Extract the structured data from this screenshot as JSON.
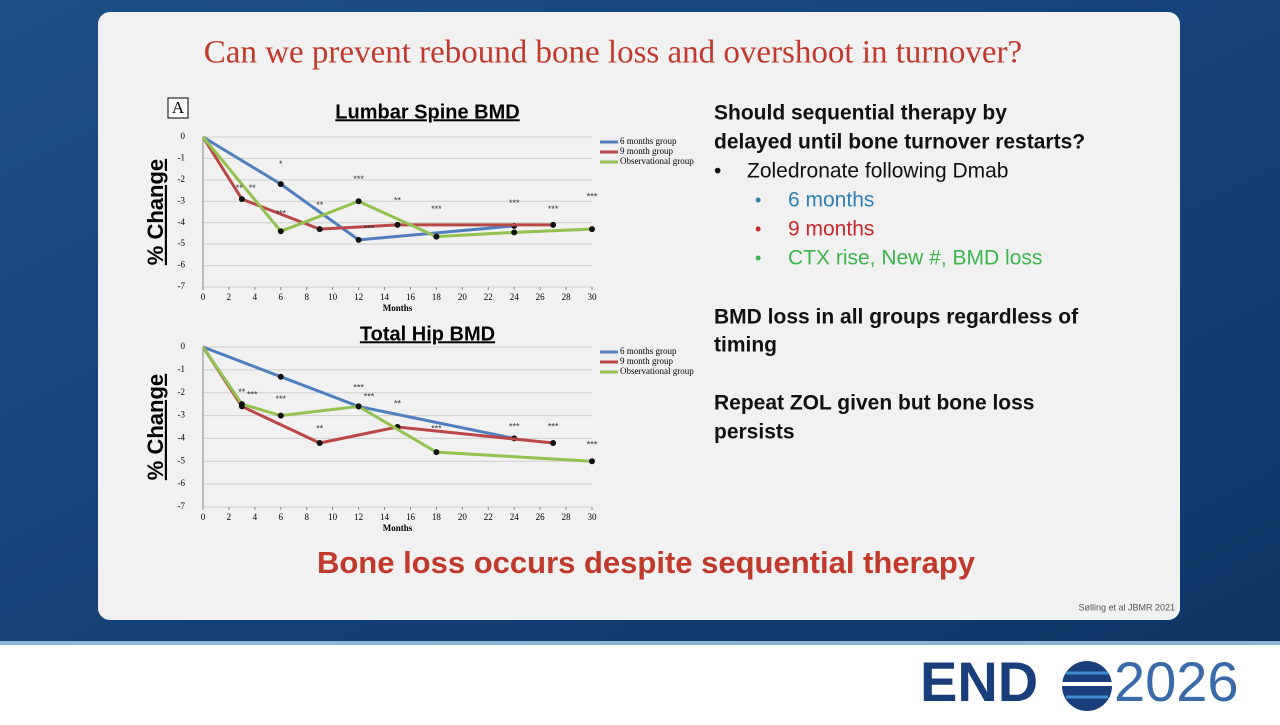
{
  "slide": {
    "title": "Can we prevent rebound bone loss and overshoot in turnover?",
    "panel_letter": "A",
    "heading": [
      "Should sequential therapy by",
      "delayed until bone turnover restarts?"
    ],
    "bullet": "Zoledronate following Dmab",
    "subbullets": [
      {
        "text": "6 months",
        "color": "#2f7fb5"
      },
      {
        "text": "9 months",
        "color": "#c8282d"
      },
      {
        "text": "CTX rise, New #, BMD loss",
        "color": "#3cb54a"
      }
    ],
    "notes": [
      [
        "BMD loss in all groups regardless of",
        "timing"
      ],
      [
        "Repeat ZOL given but bone loss",
        "persists"
      ]
    ],
    "conclusion": "Bone loss occurs despite sequential therapy",
    "citation": "Sølling et al JBMR 2021",
    "logo": {
      "left": "END",
      "right": "2026"
    }
  },
  "chart_data": [
    {
      "type": "line",
      "title": "Lumbar Spine BMD",
      "x_label": "Months",
      "y_label": "% Change",
      "xlim": [
        0,
        30
      ],
      "xticks": [
        0,
        2,
        4,
        6,
        8,
        10,
        12,
        14,
        16,
        18,
        20,
        22,
        24,
        26,
        28,
        30
      ],
      "ylim": [
        -7,
        0
      ],
      "yticks": [
        -7,
        -6,
        -5,
        -4,
        -3,
        -2,
        -1,
        0
      ],
      "grid": true,
      "legend": "top-right",
      "series": [
        {
          "name": "6 months group",
          "color": "#4f7fbf",
          "x": [
            0,
            6,
            12,
            24
          ],
          "values": [
            0,
            -2.2,
            -4.8,
            -4.15
          ]
        },
        {
          "name": "9 month group",
          "color": "#b84745",
          "x": [
            0,
            3,
            9,
            15,
            27
          ],
          "values": [
            0,
            -2.9,
            -4.3,
            -4.1,
            -4.1
          ]
        },
        {
          "name": "Observational group",
          "color": "#93c250",
          "x": [
            0,
            6,
            12,
            18,
            24,
            30
          ],
          "values": [
            0,
            -4.4,
            -3.0,
            -4.65,
            -4.45,
            -4.3
          ]
        }
      ],
      "annotations": [
        {
          "x": 2.8,
          "y": -2.4,
          "text": "**"
        },
        {
          "x": 3.8,
          "y": -2.4,
          "text": "**"
        },
        {
          "x": 6,
          "y": -1.3,
          "text": "*"
        },
        {
          "x": 6,
          "y": -3.6,
          "text": "***"
        },
        {
          "x": 9,
          "y": -3.2,
          "text": "**"
        },
        {
          "x": 12,
          "y": -2.0,
          "text": "***"
        },
        {
          "x": 12.8,
          "y": -4.3,
          "text": "***"
        },
        {
          "x": 15,
          "y": -3.0,
          "text": "**"
        },
        {
          "x": 18,
          "y": -3.4,
          "text": "***"
        },
        {
          "x": 24,
          "y": -3.1,
          "text": "***"
        },
        {
          "x": 27,
          "y": -3.4,
          "text": "***"
        },
        {
          "x": 30,
          "y": -2.8,
          "text": "***"
        }
      ]
    },
    {
      "type": "line",
      "title": "Total Hip BMD",
      "x_label": "Months",
      "y_label": "% Change",
      "xlim": [
        0,
        30
      ],
      "xticks": [
        0,
        2,
        4,
        6,
        8,
        10,
        12,
        14,
        16,
        18,
        20,
        22,
        24,
        26,
        28,
        30
      ],
      "ylim": [
        -7,
        0
      ],
      "yticks": [
        -7,
        -6,
        -5,
        -4,
        -3,
        -2,
        -1,
        0
      ],
      "grid": true,
      "legend": "top-right",
      "series": [
        {
          "name": "6 months group",
          "color": "#4f7fbf",
          "x": [
            0,
            6,
            12,
            24
          ],
          "values": [
            0,
            -1.3,
            -2.6,
            -4.0
          ]
        },
        {
          "name": "9 month group",
          "color": "#b84745",
          "x": [
            0,
            3,
            9,
            15,
            27
          ],
          "values": [
            0,
            -2.6,
            -4.2,
            -3.5,
            -4.2
          ]
        },
        {
          "name": "Observational group",
          "color": "#93c250",
          "x": [
            0,
            3,
            6,
            12,
            18,
            30
          ],
          "values": [
            0,
            -2.5,
            -3.0,
            -2.6,
            -4.6,
            -5.0
          ]
        }
      ],
      "annotations": [
        {
          "x": 3,
          "y": -2.0,
          "text": "**"
        },
        {
          "x": 3.8,
          "y": -2.1,
          "text": "***"
        },
        {
          "x": 6,
          "y": -2.3,
          "text": "***"
        },
        {
          "x": 9,
          "y": -3.6,
          "text": "**"
        },
        {
          "x": 12,
          "y": -1.8,
          "text": "***"
        },
        {
          "x": 12.8,
          "y": -2.2,
          "text": "***"
        },
        {
          "x": 15,
          "y": -2.5,
          "text": "**"
        },
        {
          "x": 18,
          "y": -3.6,
          "text": "***"
        },
        {
          "x": 24,
          "y": -3.5,
          "text": "***"
        },
        {
          "x": 27,
          "y": -3.5,
          "text": "***"
        },
        {
          "x": 30,
          "y": -4.3,
          "text": "***"
        }
      ]
    }
  ]
}
